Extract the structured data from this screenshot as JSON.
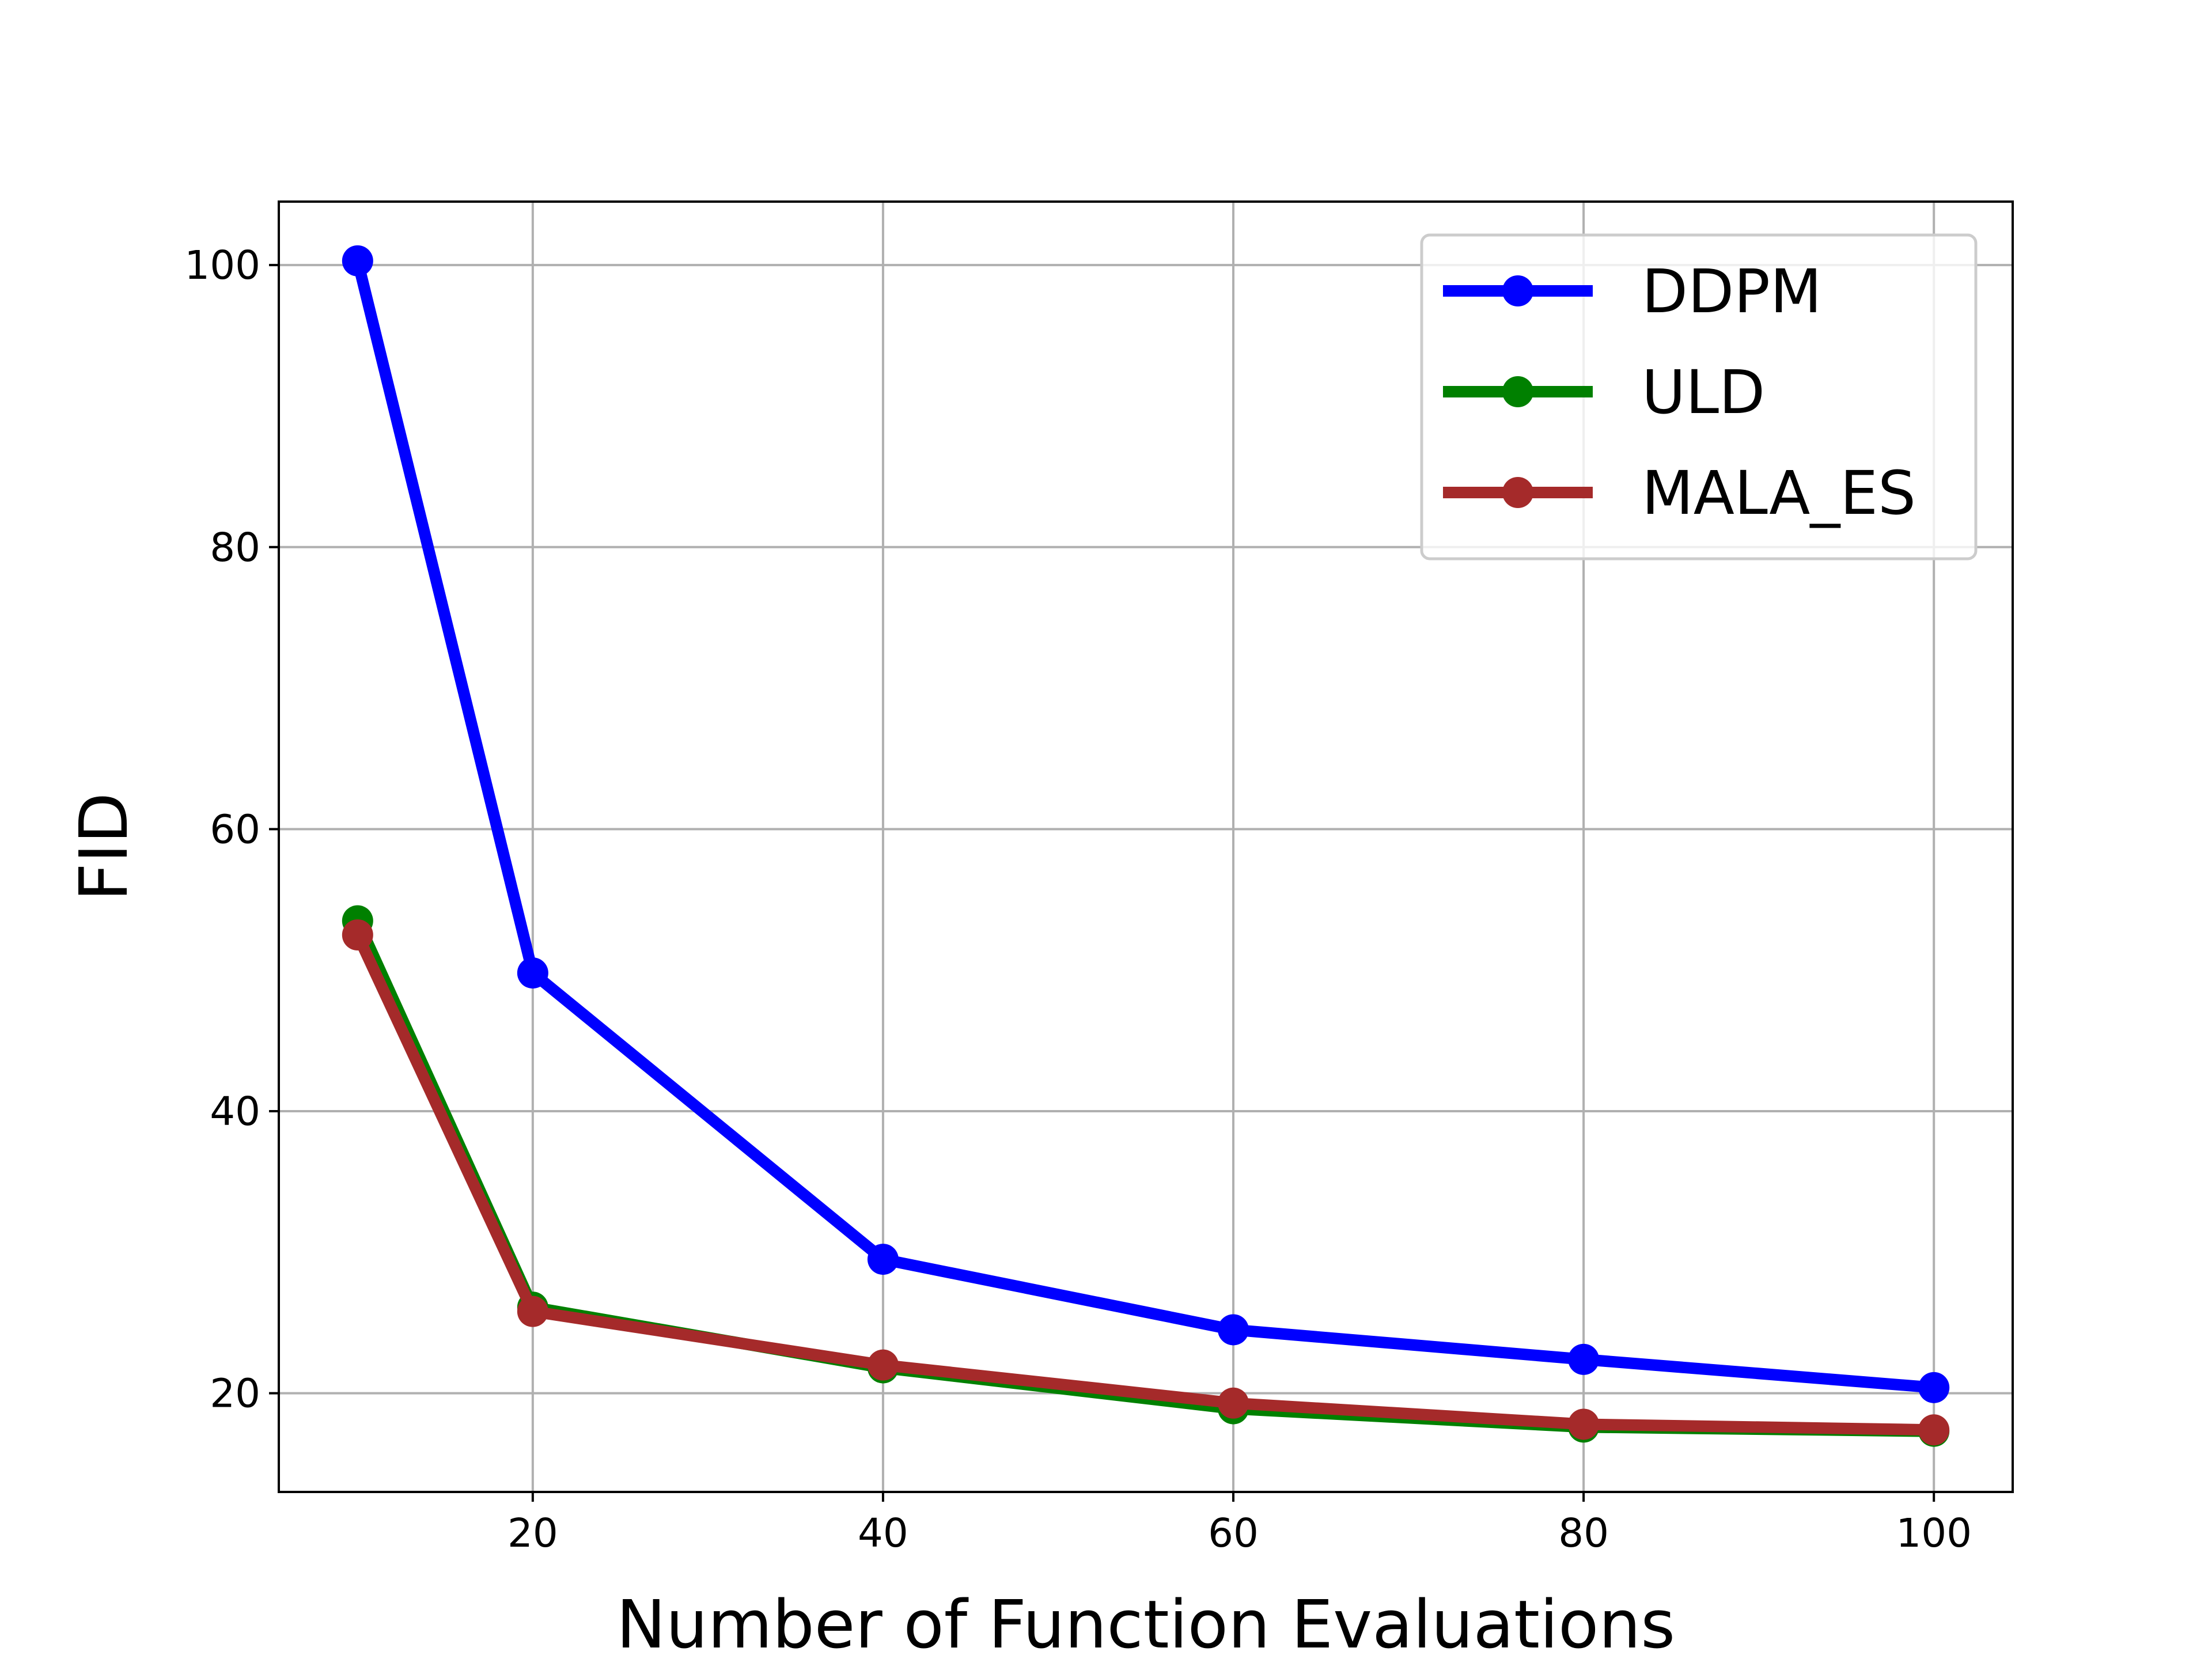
{
  "chart_data": {
    "type": "line",
    "xlabel": "Number of Function Evaluations",
    "ylabel": "FID",
    "x": [
      10,
      20,
      40,
      60,
      80,
      100
    ],
    "xlim": [
      5.5,
      104.5
    ],
    "ylim": [
      13,
      104.5
    ],
    "xticks": [
      20,
      40,
      60,
      80,
      100
    ],
    "yticks": [
      20,
      40,
      60,
      80,
      100
    ],
    "grid": true,
    "legend_position": "top-right",
    "series": [
      {
        "name": "DDPM",
        "color": "#0000ff",
        "values": [
          100.3,
          49.8,
          29.5,
          24.5,
          22.4,
          20.4
        ]
      },
      {
        "name": "ULD",
        "color": "#008000",
        "values": [
          53.5,
          26.1,
          21.8,
          18.9,
          17.6,
          17.3
        ]
      },
      {
        "name": "MALA_ES",
        "color": "#a52a2a",
        "values": [
          52.5,
          25.8,
          22.0,
          19.3,
          17.8,
          17.4
        ]
      }
    ]
  }
}
